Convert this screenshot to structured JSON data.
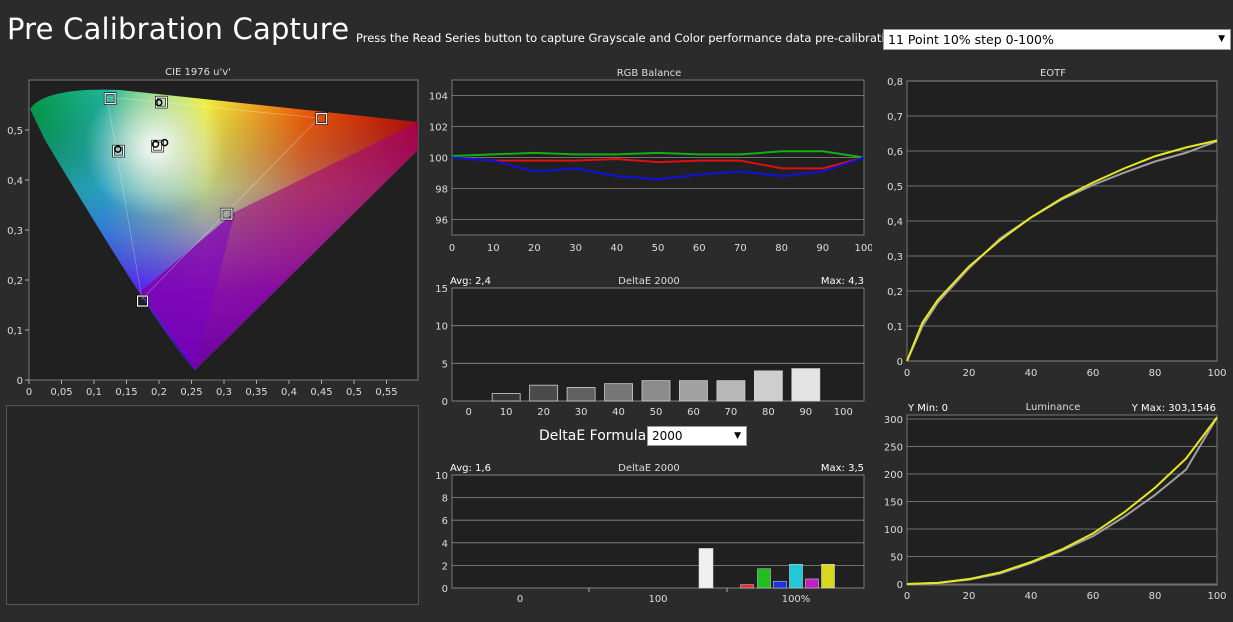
{
  "header": {
    "title": "Pre Calibration Capture",
    "instructions": "Press the Read Series button to capture Grayscale and Color performance data pre-calibration.",
    "pattern_select": "11 Point 10% step 0-100%"
  },
  "formula": {
    "label": "DeltaE Formula",
    "value": "2000"
  },
  "colors": {
    "background": "#2b2b2b",
    "plot_background": "#202020",
    "red": "#e01010",
    "green": "#10b010",
    "blue": "#1010e0",
    "eotf_target": "#e8e820",
    "eotf_measured": "#a0a0a0"
  },
  "chart_data": [
    {
      "id": "cie",
      "type": "scatter",
      "title": "CIE 1976 u'v'",
      "x_ticks": [
        "0",
        "0,05",
        "0,1",
        "0,15",
        "0,2",
        "0,25",
        "0,3",
        "0,35",
        "0,4",
        "0,45",
        "0,5",
        "0,55"
      ],
      "y_ticks": [
        "0",
        "0,1",
        "0,2",
        "0,3",
        "0,4",
        "0,5"
      ],
      "xlim": [
        0,
        0.6
      ],
      "ylim": [
        0,
        0.6
      ],
      "targets": [
        {
          "name": "Red",
          "u": 0.451,
          "v": 0.523
        },
        {
          "name": "Green",
          "u": 0.125,
          "v": 0.563
        },
        {
          "name": "Blue",
          "u": 0.175,
          "v": 0.158
        },
        {
          "name": "Cyan",
          "u": 0.138,
          "v": 0.458
        },
        {
          "name": "Magenta",
          "u": 0.305,
          "v": 0.332
        },
        {
          "name": "Yellow",
          "u": 0.204,
          "v": 0.556
        },
        {
          "name": "White",
          "u": 0.198,
          "v": 0.468
        }
      ],
      "measured": [
        {
          "name": "Green",
          "u": 0.2,
          "v": 0.555
        },
        {
          "name": "Cyan",
          "u": 0.137,
          "v": 0.462
        },
        {
          "name": "White",
          "u": 0.195,
          "v": 0.472
        },
        {
          "name": "White2",
          "u": 0.209,
          "v": 0.475
        }
      ]
    },
    {
      "id": "rgb-balance",
      "type": "line",
      "title": "RGB Balance",
      "x": [
        0,
        10,
        20,
        30,
        40,
        50,
        60,
        70,
        80,
        90,
        100
      ],
      "ylim": [
        95,
        105
      ],
      "y_ticks": [
        96,
        98,
        100,
        102,
        104
      ],
      "series": [
        {
          "name": "Red",
          "color": "#e01010",
          "values": [
            100,
            99.8,
            99.8,
            99.8,
            99.9,
            99.7,
            99.8,
            99.8,
            99.3,
            99.3,
            100
          ]
        },
        {
          "name": "Green",
          "color": "#10b010",
          "values": [
            100.1,
            100.2,
            100.3,
            100.2,
            100.2,
            100.3,
            100.2,
            100.2,
            100.4,
            100.4,
            100
          ]
        },
        {
          "name": "Blue",
          "color": "#1010e0",
          "values": [
            100,
            99.8,
            99.1,
            99.3,
            98.8,
            98.6,
            98.9,
            99.1,
            98.8,
            99.1,
            100
          ]
        }
      ]
    },
    {
      "id": "deltae-grayscale",
      "type": "bar",
      "title": "DeltaE 2000",
      "avg_label": "Avg: 2,4",
      "max_label": "Max: 4,3",
      "categories": [
        "0",
        "10",
        "20",
        "30",
        "40",
        "50",
        "60",
        "70",
        "80",
        "90",
        "100"
      ],
      "values": [
        0,
        1,
        2.1,
        1.8,
        2.3,
        2.7,
        2.7,
        2.7,
        4.0,
        4.3,
        0
      ],
      "ylim": [
        0,
        15
      ],
      "y_ticks": [
        0,
        5,
        10,
        15
      ]
    },
    {
      "id": "deltae-color",
      "type": "bar",
      "title": "DeltaE 2000",
      "avg_label": "Avg: 1,6",
      "max_label": "Max: 3,5",
      "x_labels": [
        "0",
        "100",
        "100%"
      ],
      "ylim": [
        0,
        10
      ],
      "y_ticks": [
        0,
        2,
        4,
        6,
        8,
        10
      ],
      "bars": [
        {
          "name": "White",
          "color": "#f0f0f0",
          "value": 3.5
        },
        {
          "name": "Red",
          "color": "#e03030",
          "value": 0.3
        },
        {
          "name": "Green",
          "color": "#20c020",
          "value": 1.7
        },
        {
          "name": "Blue",
          "color": "#2030e0",
          "value": 0.6
        },
        {
          "name": "Cyan",
          "color": "#20c8d8",
          "value": 2.1
        },
        {
          "name": "Magenta",
          "color": "#c020c0",
          "value": 0.8
        },
        {
          "name": "Yellow",
          "color": "#d8d820",
          "value": 2.1
        }
      ]
    },
    {
      "id": "eotf",
      "type": "line",
      "title": "EOTF",
      "x": [
        0,
        5,
        10,
        20,
        30,
        40,
        50,
        60,
        70,
        80,
        90,
        100
      ],
      "ylim": [
        0,
        0.8
      ],
      "y_ticks": [
        "0",
        "0,1",
        "0,2",
        "0,3",
        "0,4",
        "0,5",
        "0,6",
        "0,7",
        "0,8"
      ],
      "x_ticks": [
        0,
        20,
        40,
        60,
        80,
        100
      ],
      "series": [
        {
          "name": "Target",
          "color": "#e8e820",
          "values": [
            0,
            0.11,
            0.175,
            0.27,
            0.345,
            0.41,
            0.465,
            0.51,
            0.55,
            0.585,
            0.61,
            0.63
          ]
        },
        {
          "name": "Measured",
          "color": "#a0a0a0",
          "values": [
            0,
            0.1,
            0.168,
            0.265,
            0.35,
            0.41,
            0.462,
            0.503,
            0.538,
            0.57,
            0.595,
            0.628
          ]
        }
      ]
    },
    {
      "id": "luminance",
      "type": "line",
      "title": "Luminance",
      "y_min_label": "Y Min: 0",
      "y_max_label": "Y Max: 303,1546",
      "x": [
        0,
        10,
        20,
        30,
        40,
        50,
        60,
        70,
        80,
        90,
        100
      ],
      "ylim": [
        0,
        300
      ],
      "y_ticks": [
        0,
        50,
        100,
        150,
        200,
        250,
        300
      ],
      "x_ticks": [
        0,
        20,
        40,
        60,
        80,
        100
      ],
      "series": [
        {
          "name": "Target",
          "color": "#e8e820",
          "values": [
            0,
            2,
            9,
            21,
            40,
            63,
            92,
            130,
            175,
            228,
            303
          ]
        },
        {
          "name": "Measured",
          "color": "#a0a0a0",
          "values": [
            0,
            2,
            8,
            19,
            38,
            61,
            87,
            122,
            162,
            208,
            303
          ]
        }
      ]
    }
  ]
}
